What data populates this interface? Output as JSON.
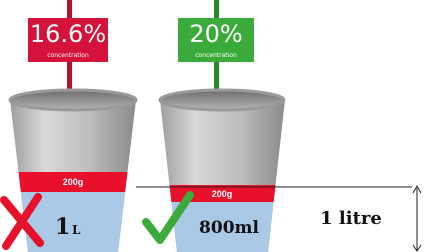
{
  "signs": [
    {
      "value": "16.6%",
      "caption": "concentration"
    },
    {
      "value": "20%",
      "caption": "concentration"
    }
  ],
  "buckets": [
    {
      "band": "200g",
      "amount": "1",
      "unit": "L"
    },
    {
      "band": "200g",
      "amount": "800ml"
    }
  ],
  "level_label": "1 litre"
}
